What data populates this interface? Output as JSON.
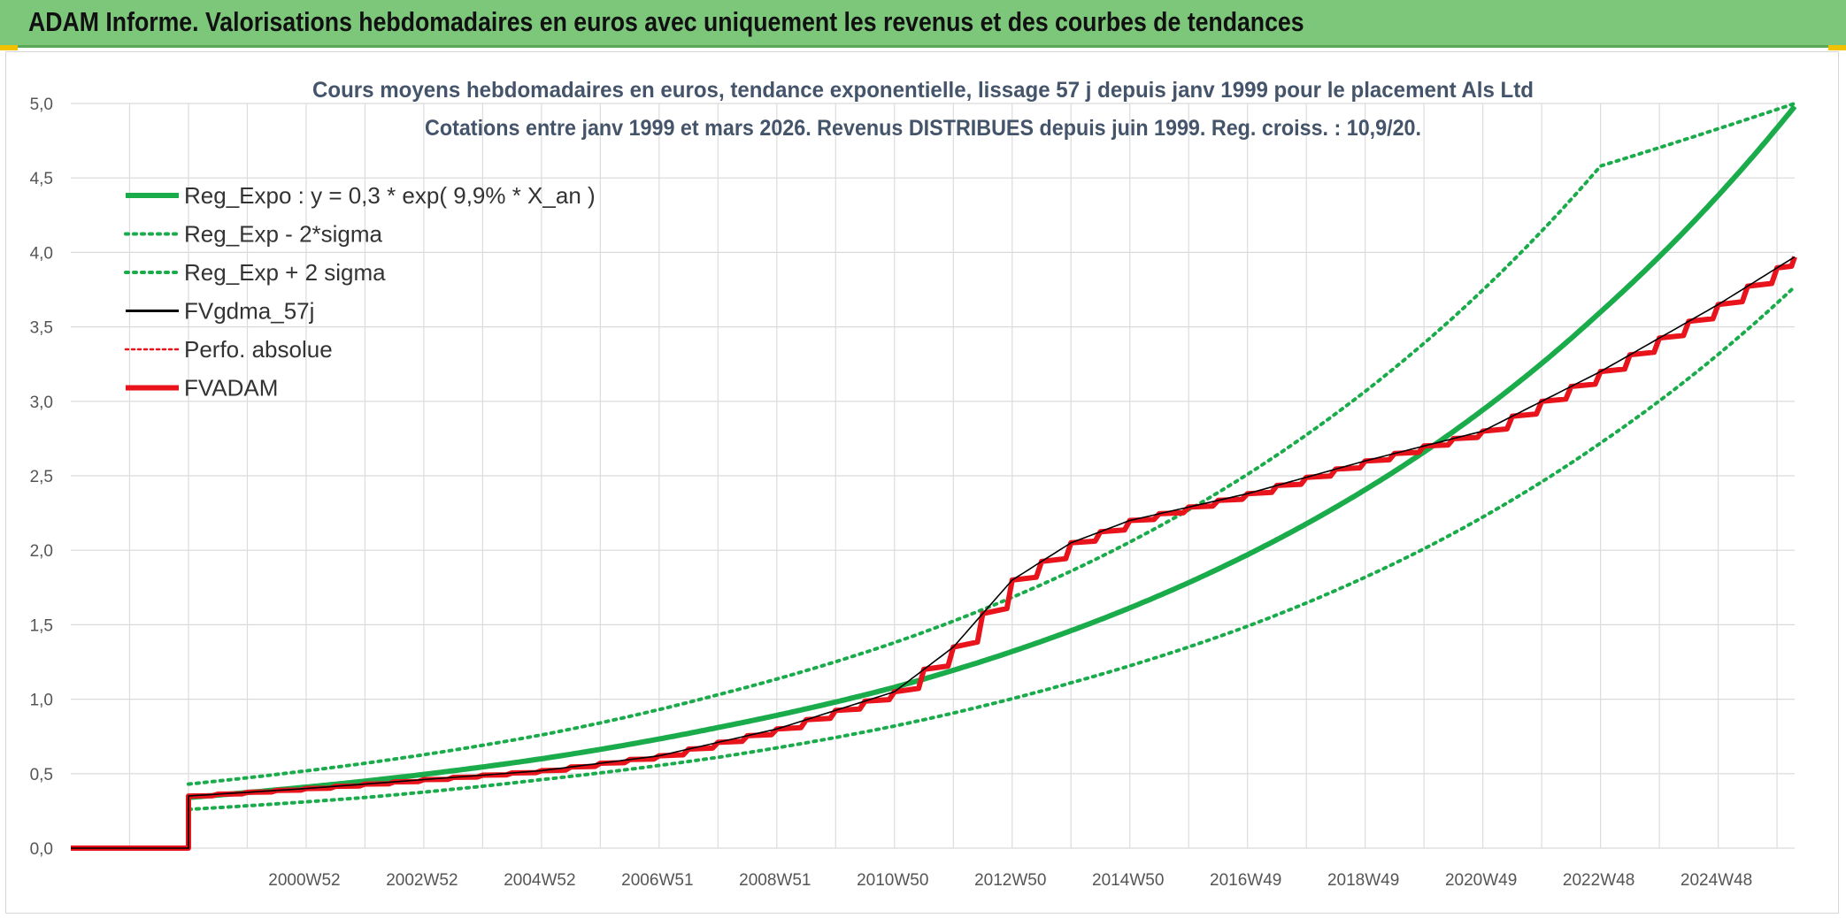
{
  "header": {
    "title": "ADAM Informe. Valorisations hebdomadaires en euros avec uniquement les revenus et des courbes de tendances"
  },
  "colors": {
    "banner": "#7dc77b",
    "reg_expo": "#1aab4b",
    "fvadam": "#e8131b",
    "fvgdma": "#000000",
    "perfo": "#e8131b"
  },
  "chart_data": {
    "type": "line",
    "title_lines": [
      "Cours moyens hebdomadaires en euros, tendance exponentielle, lissage 57 j depuis janv 1999 pour le placement Als Ltd",
      "Cotations entre janv 1999 et mars 2026. Revenus DISTRIBUES depuis juin 1999. Reg. croiss. : 10,9/20."
    ],
    "xlabel": "",
    "ylabel": "",
    "ylim": [
      0,
      5
    ],
    "y_ticks": [
      "0,0",
      "0,5",
      "1,0",
      "1,5",
      "2,0",
      "2,5",
      "3,0",
      "3,5",
      "4,0",
      "4,5",
      "5,0"
    ],
    "x_range_years": [
      1997.0,
      2026.3
    ],
    "x_tick_labels": [
      "2000W52",
      "2002W52",
      "2004W52",
      "2006W51",
      "2008W51",
      "2010W50",
      "2012W50",
      "2014W50",
      "2016W49",
      "2018W49",
      "2020W49",
      "2022W48",
      "2024W48"
    ],
    "x_tick_years": [
      2001.0,
      2003.0,
      2005.0,
      2007.0,
      2009.0,
      2011.0,
      2013.0,
      2015.0,
      2017.0,
      2019.0,
      2021.0,
      2023.0,
      2025.0
    ],
    "grid": true,
    "legend_position": "top-left",
    "legend": [
      "Reg_Expo : y = 0,3 * exp( 9,9% *  X_an )",
      "Reg_Exp - 2*sigma",
      "Reg_Exp + 2 sigma",
      "FVgdma_57j",
      "Perfo. absolue",
      "FVADAM"
    ],
    "series": [
      {
        "name": "Reg_Expo : y = 0,3 * exp( 9,9% *  X_an )",
        "style": "solid",
        "x": [
          1999.0,
          2002.0,
          2005.0,
          2008.0,
          2011.0,
          2014.0,
          2017.0,
          2020.0,
          2023.0,
          2026.3
        ],
        "y": [
          0.34,
          0.45,
          0.6,
          0.81,
          1.08,
          1.46,
          1.97,
          2.66,
          3.6,
          4.98
        ]
      },
      {
        "name": "Reg_Exp - 2*sigma",
        "style": "dotted",
        "x": [
          1999.0,
          2002.0,
          2005.0,
          2008.0,
          2011.0,
          2014.0,
          2017.0,
          2020.0,
          2023.0,
          2026.3
        ],
        "y": [
          0.26,
          0.34,
          0.46,
          0.61,
          0.82,
          1.11,
          1.49,
          2.01,
          2.72,
          3.77
        ]
      },
      {
        "name": "Reg_Exp + 2 sigma",
        "style": "dotted",
        "x": [
          1999.0,
          2002.0,
          2005.0,
          2008.0,
          2011.0,
          2014.0,
          2017.0,
          2020.0,
          2023.0,
          2026.3
        ],
        "y": [
          0.43,
          0.57,
          0.76,
          1.03,
          1.38,
          1.86,
          2.51,
          3.39,
          4.58,
          5.0
        ]
      },
      {
        "name": "FVgdma_57j",
        "style": "solid",
        "x": [
          1997.0,
          1999.0,
          1999.0,
          2001.0,
          2003.0,
          2005.0,
          2007.0,
          2009.0,
          2011.0,
          2012.0,
          2013.0,
          2014.0,
          2015.0,
          2017.0,
          2019.0,
          2021.0,
          2023.0,
          2025.0,
          2026.3
        ],
        "y": [
          0.0,
          0.0,
          0.35,
          0.4,
          0.46,
          0.52,
          0.62,
          0.8,
          1.05,
          1.35,
          1.8,
          2.05,
          2.2,
          2.38,
          2.6,
          2.8,
          3.2,
          3.65,
          3.97
        ]
      },
      {
        "name": "Perfo. absolue",
        "style": "dotted",
        "x": [
          1997.0,
          1999.0,
          1999.0,
          2001.0,
          2003.0,
          2005.0,
          2007.0,
          2009.0,
          2011.0,
          2012.0,
          2013.0,
          2014.0,
          2015.0,
          2017.0,
          2019.0,
          2021.0,
          2023.0,
          2025.0,
          2026.3
        ],
        "y": [
          0.0,
          0.0,
          0.35,
          0.4,
          0.46,
          0.52,
          0.62,
          0.8,
          1.05,
          1.35,
          1.8,
          2.05,
          2.2,
          2.38,
          2.6,
          2.8,
          3.2,
          3.65,
          3.97
        ]
      },
      {
        "name": "FVADAM",
        "style": "solid",
        "x": [
          1997.0,
          1999.0,
          1999.0,
          2001.0,
          2003.0,
          2005.0,
          2007.0,
          2009.0,
          2011.0,
          2012.0,
          2013.0,
          2014.0,
          2015.0,
          2017.0,
          2019.0,
          2021.0,
          2023.0,
          2025.0,
          2026.3
        ],
        "y": [
          0.0,
          0.0,
          0.35,
          0.4,
          0.46,
          0.52,
          0.62,
          0.8,
          1.05,
          1.35,
          1.8,
          2.05,
          2.2,
          2.38,
          2.6,
          2.8,
          3.2,
          3.65,
          3.97
        ]
      }
    ]
  }
}
